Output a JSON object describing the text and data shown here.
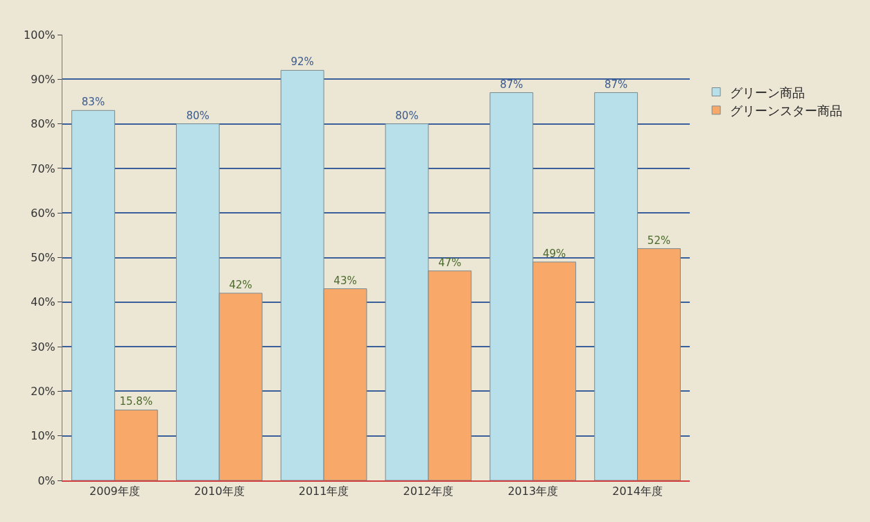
{
  "chart_data": {
    "type": "bar",
    "categories": [
      "2009年度",
      "2010年度",
      "2011年度",
      "2012年度",
      "2013年度",
      "2014年度"
    ],
    "series": [
      {
        "name": "グリーン商品",
        "color": "#b7e0ea",
        "values": [
          83,
          80,
          92,
          80,
          87,
          87
        ],
        "value_labels": [
          "83%",
          "80%",
          "92%",
          "80%",
          "87%",
          "87%"
        ]
      },
      {
        "name": "グリーンスター商品",
        "color": "#f8a868",
        "values": [
          15.8,
          42,
          43,
          47,
          49,
          52
        ],
        "value_labels": [
          "15.8%",
          "42%",
          "43%",
          "47%",
          "49%",
          "52%"
        ]
      }
    ],
    "ylim": [
      0,
      100
    ],
    "yticks": [
      {
        "value": 0,
        "label": "0%"
      },
      {
        "value": 10,
        "label": "10%"
      },
      {
        "value": 20,
        "label": "20%"
      },
      {
        "value": 30,
        "label": "30%"
      },
      {
        "value": 40,
        "label": "40%"
      },
      {
        "value": 50,
        "label": "50%"
      },
      {
        "value": 60,
        "label": "60%"
      },
      {
        "value": 70,
        "label": "70%"
      },
      {
        "value": 80,
        "label": "80%"
      },
      {
        "value": 90,
        "label": "90%"
      },
      {
        "value": 100,
        "label": "100%"
      }
    ],
    "grid": "y",
    "legend": "right"
  }
}
